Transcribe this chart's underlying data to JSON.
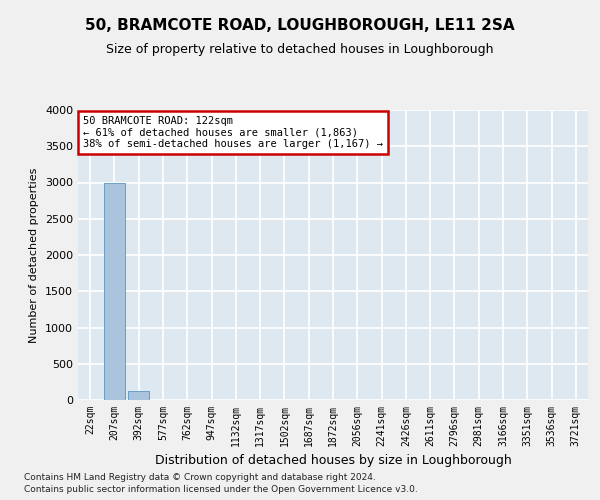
{
  "title": "50, BRAMCOTE ROAD, LOUGHBOROUGH, LE11 2SA",
  "subtitle": "Size of property relative to detached houses in Loughborough",
  "xlabel": "Distribution of detached houses by size in Loughborough",
  "ylabel": "Number of detached properties",
  "footnote1": "Contains HM Land Registry data © Crown copyright and database right 2024.",
  "footnote2": "Contains public sector information licensed under the Open Government Licence v3.0.",
  "bin_labels": [
    "22sqm",
    "207sqm",
    "392sqm",
    "577sqm",
    "762sqm",
    "947sqm",
    "1132sqm",
    "1317sqm",
    "1502sqm",
    "1687sqm",
    "1872sqm",
    "2056sqm",
    "2241sqm",
    "2426sqm",
    "2611sqm",
    "2796sqm",
    "2981sqm",
    "3166sqm",
    "3351sqm",
    "3536sqm",
    "3721sqm"
  ],
  "bar_values": [
    5,
    2990,
    120,
    3,
    2,
    1,
    1,
    1,
    0,
    0,
    0,
    0,
    0,
    0,
    0,
    0,
    0,
    0,
    0,
    0,
    0
  ],
  "bar_color": "#aac4dd",
  "bar_edge_color": "#5a96c0",
  "annotation_text": "50 BRAMCOTE ROAD: 122sqm\n← 61% of detached houses are smaller (1,863)\n38% of semi-detached houses are larger (1,167) →",
  "annotation_box_color": "#ffffff",
  "annotation_box_edge_color": "#cc0000",
  "ylim": [
    0,
    4000
  ],
  "yticks": [
    0,
    500,
    1000,
    1500,
    2000,
    2500,
    3000,
    3500,
    4000
  ],
  "background_color": "#dde8f0",
  "grid_color": "#ffffff",
  "fig_background": "#f0f0f0",
  "title_fontsize": 11,
  "subtitle_fontsize": 9,
  "xlabel_fontsize": 9,
  "ylabel_fontsize": 8,
  "tick_fontsize": 7,
  "annot_fontsize": 7.5
}
